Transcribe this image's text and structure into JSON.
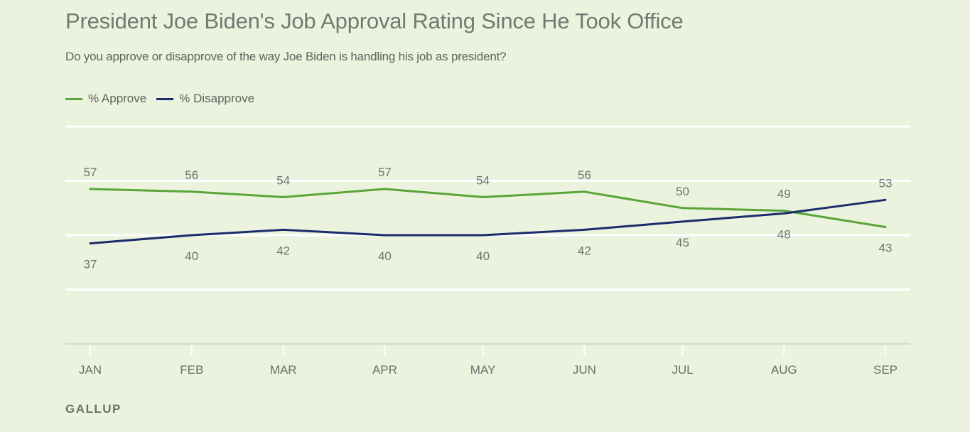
{
  "title": "President Joe Biden's Job Approval Rating Since He Took Office",
  "subtitle": "Do you approve or disapprove of the way Joe Biden is handling his job as president?",
  "source": "GALLUP",
  "colors": {
    "approve": "#5aa53a",
    "disapprove": "#1b2c6c",
    "background": "#ebf2dd",
    "gridline": "#ffffff",
    "axis": "#d9ddd4"
  },
  "chart_data": {
    "type": "line",
    "title": "President Joe Biden's Job Approval Rating Since He Took Office",
    "subtitle": "Do you approve or disapprove of the way Joe Biden is handling his job as president?",
    "xlabel": "",
    "ylabel": "",
    "categories": [
      "JAN",
      "FEB",
      "MAR",
      "APR",
      "MAY",
      "JUN",
      "JUL",
      "AUG",
      "SEP"
    ],
    "x_day_offsets": [
      0,
      31,
      59,
      90,
      120,
      151,
      181,
      212,
      243
    ],
    "series": [
      {
        "name": "% Approve",
        "key": "approve",
        "values": [
          57,
          56,
          54,
          57,
          54,
          56,
          50,
          49,
          43
        ]
      },
      {
        "name": "% Disapprove",
        "key": "disapprove",
        "values": [
          37,
          40,
          42,
          40,
          40,
          42,
          45,
          48,
          53
        ]
      }
    ],
    "ylim": [
      0,
      80
    ],
    "gridlines_y": [
      20,
      40,
      60,
      80
    ],
    "grid": true,
    "legend_position": "top-left",
    "source": "GALLUP"
  }
}
